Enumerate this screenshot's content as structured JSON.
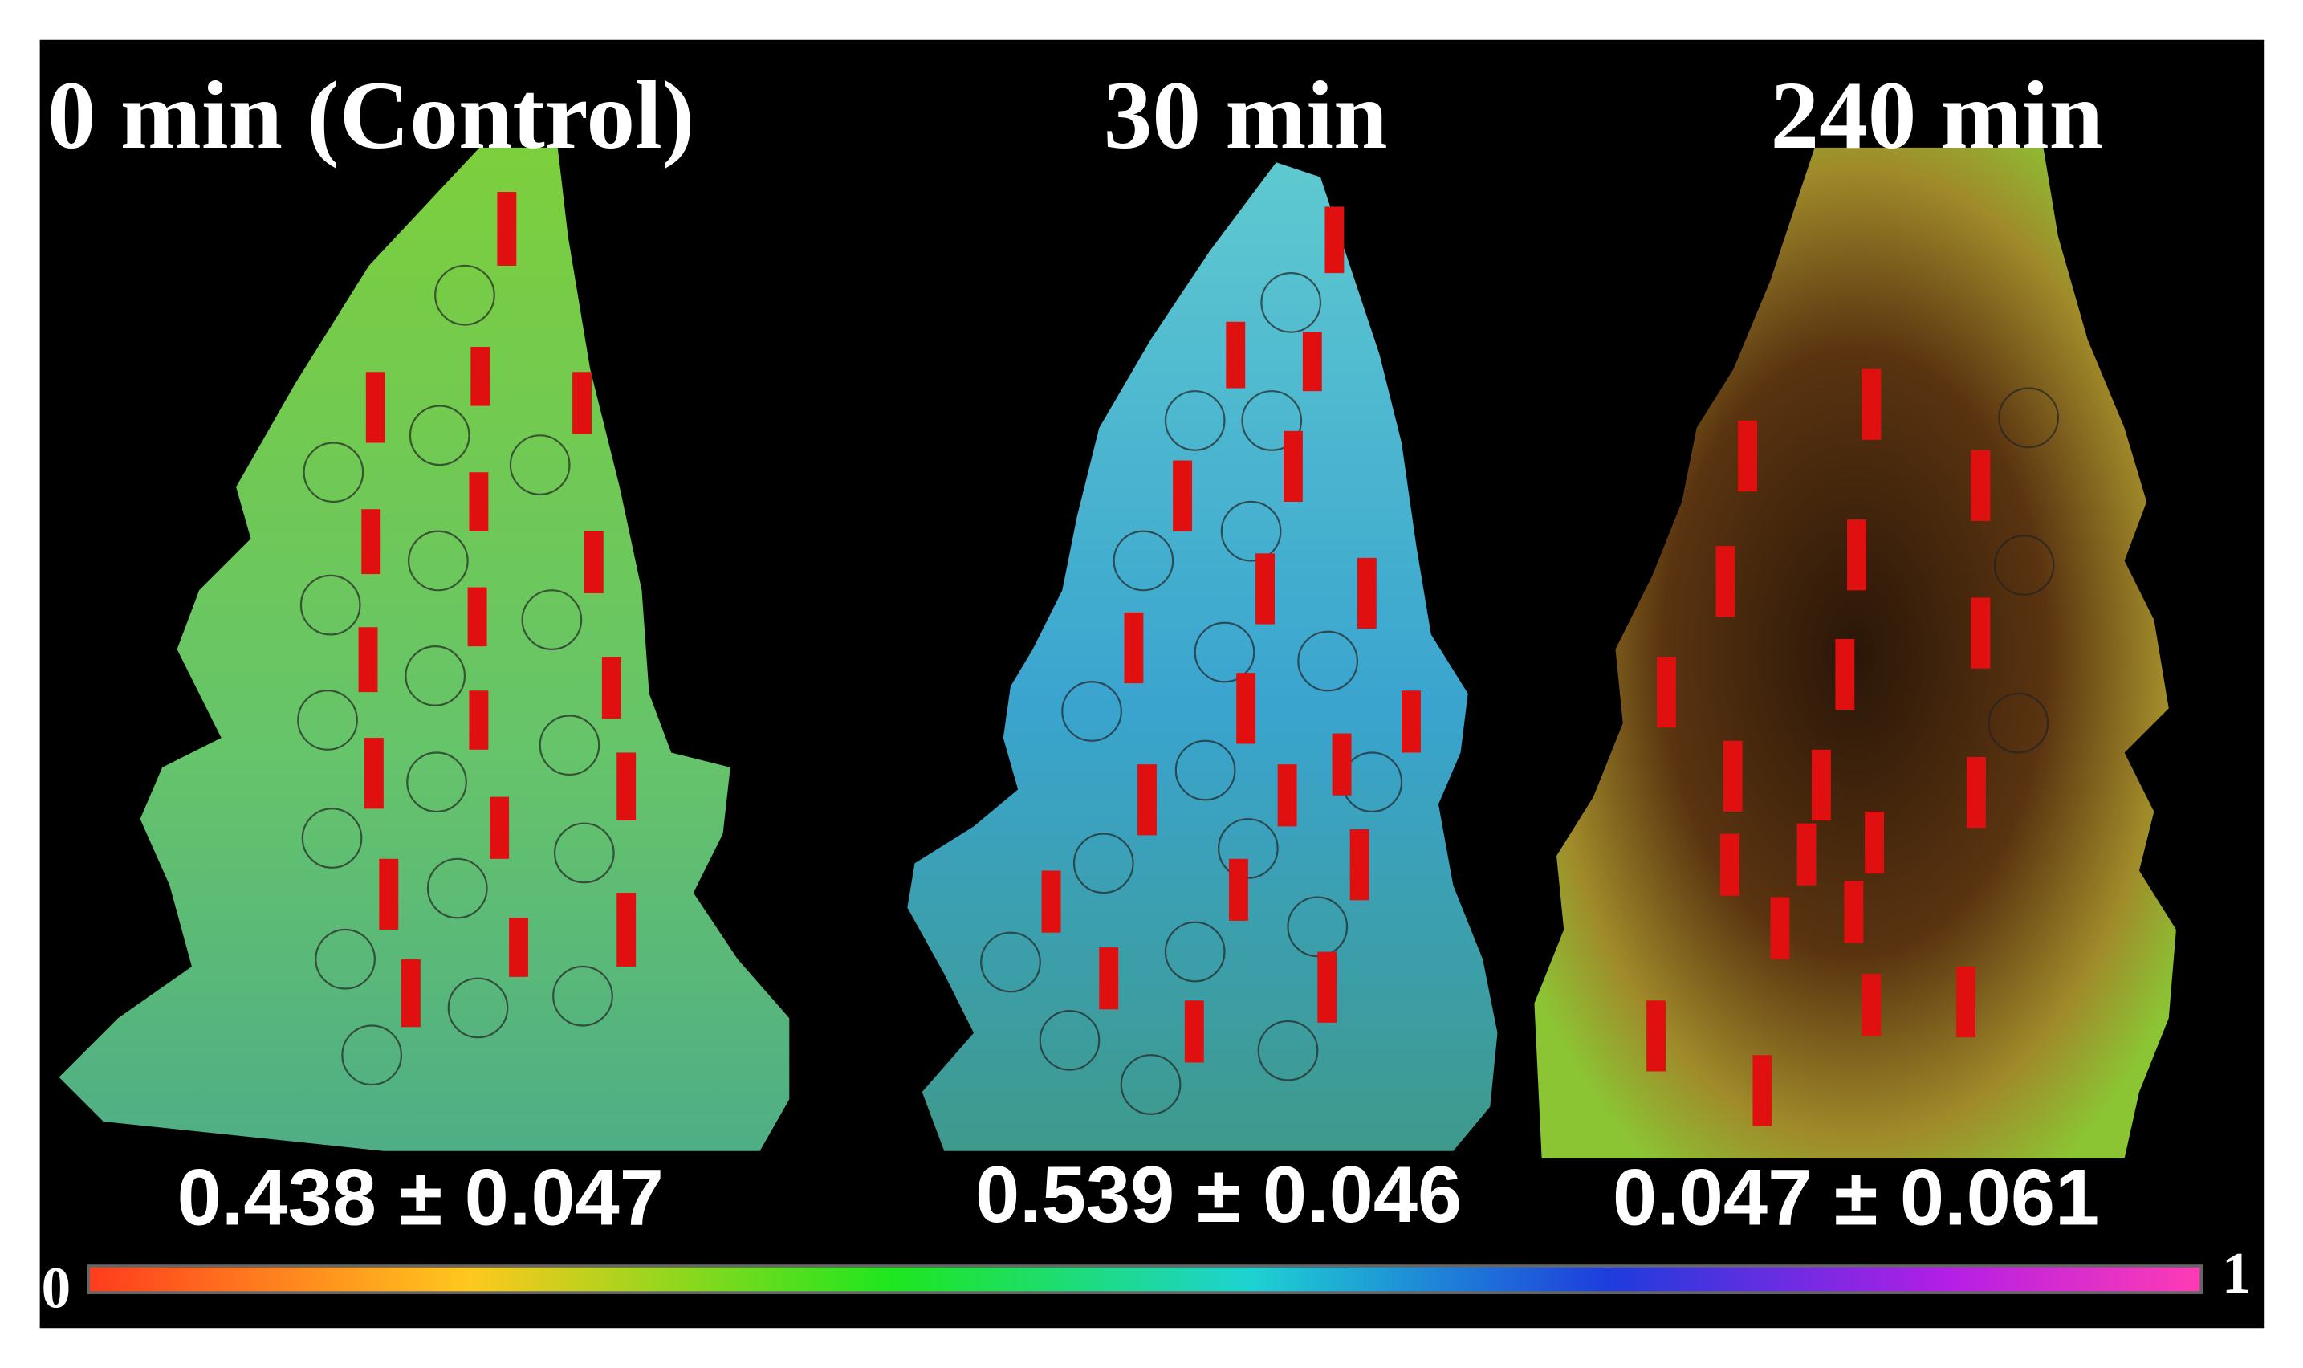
{
  "panels": [
    {
      "title": "0 min (Control)",
      "value": "0.438 ± 0.047"
    },
    {
      "title": "30 min",
      "value": "0.539 ± 0.046"
    },
    {
      "title": "240 min",
      "value": "0.047 ± 0.061"
    }
  ],
  "colorbar": {
    "min_label": "0",
    "max_label": "1"
  }
}
